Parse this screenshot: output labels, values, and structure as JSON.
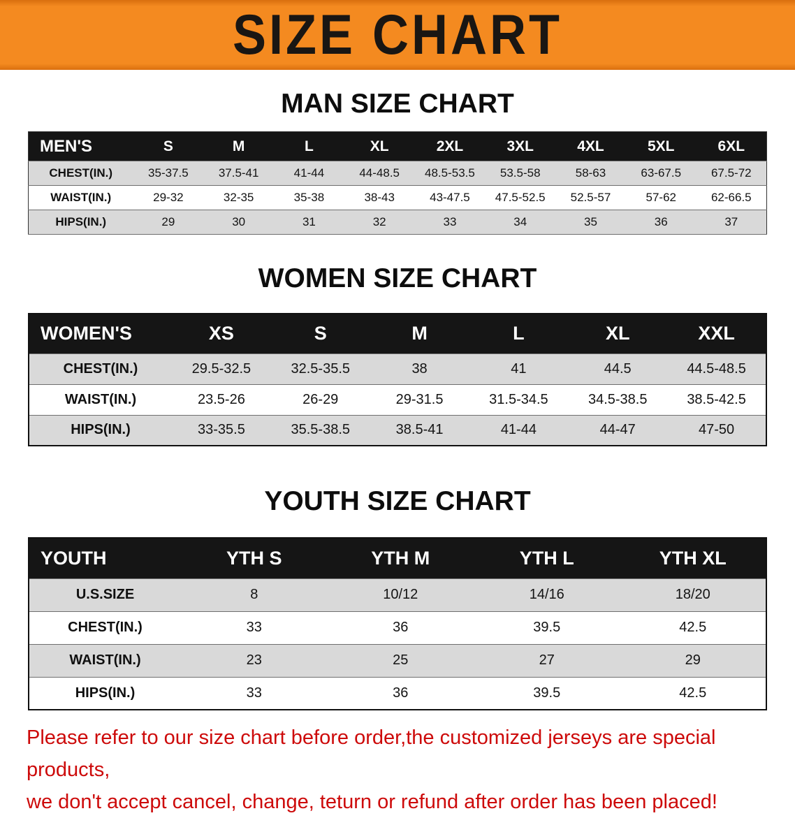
{
  "banner": {
    "title": "SIZE CHART"
  },
  "colors": {
    "banner_bg": "#f48a20",
    "table_header_bg": "#151515",
    "row_alt_bg": "#d9d9d9",
    "notice_text": "#cd0a0a"
  },
  "sections": [
    {
      "id": "men",
      "heading": "MAN SIZE CHART",
      "table": {
        "header": [
          "MEN'S",
          "S",
          "M",
          "L",
          "XL",
          "2XL",
          "3XL",
          "4XL",
          "5XL",
          "6XL"
        ],
        "rows": [
          [
            "CHEST(IN.)",
            "35-37.5",
            "37.5-41",
            "41-44",
            "44-48.5",
            "48.5-53.5",
            "53.5-58",
            "58-63",
            "63-67.5",
            "67.5-72"
          ],
          [
            "WAIST(IN.)",
            "29-32",
            "32-35",
            "35-38",
            "38-43",
            "43-47.5",
            "47.5-52.5",
            "52.5-57",
            "57-62",
            "62-66.5"
          ],
          [
            "HIPS(IN.)",
            "29",
            "30",
            "31",
            "32",
            "33",
            "34",
            "35",
            "36",
            "37"
          ]
        ]
      }
    },
    {
      "id": "women",
      "heading": "WOMEN SIZE CHART",
      "table": {
        "header": [
          "WOMEN'S",
          "XS",
          "S",
          "M",
          "L",
          "XL",
          "XXL"
        ],
        "rows": [
          [
            "CHEST(IN.)",
            "29.5-32.5",
            "32.5-35.5",
            "38",
            "41",
            "44.5",
            "44.5-48.5"
          ],
          [
            "WAIST(IN.)",
            "23.5-26",
            "26-29",
            "29-31.5",
            "31.5-34.5",
            "34.5-38.5",
            "38.5-42.5"
          ],
          [
            "HIPS(IN.)",
            "33-35.5",
            "35.5-38.5",
            "38.5-41",
            "41-44",
            "44-47",
            "47-50"
          ]
        ]
      }
    },
    {
      "id": "youth",
      "heading": "YOUTH SIZE CHART",
      "table": {
        "header": [
          "YOUTH",
          "YTH S",
          "YTH M",
          "YTH L",
          "YTH XL"
        ],
        "rows": [
          [
            "U.S.SIZE",
            "8",
            "10/12",
            "14/16",
            "18/20"
          ],
          [
            "CHEST(IN.)",
            "33",
            "36",
            "39.5",
            "42.5"
          ],
          [
            "WAIST(IN.)",
            "23",
            "25",
            "27",
            "29"
          ],
          [
            "HIPS(IN.)",
            "33",
            "36",
            "39.5",
            "42.5"
          ]
        ]
      }
    }
  ],
  "notice": {
    "line1": "Please refer to our size chart before order,the customized jerseys are special products,",
    "line2": "we don't accept cancel, change, teturn or refund after order has been placed!"
  }
}
